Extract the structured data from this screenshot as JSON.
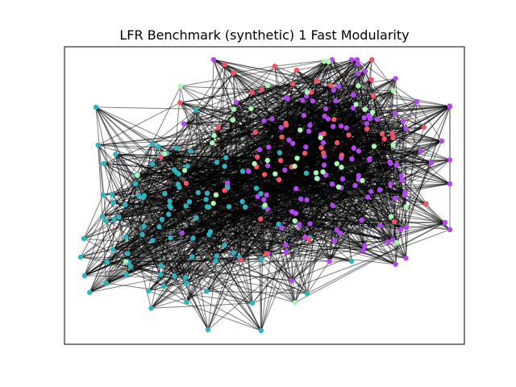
{
  "figure": {
    "title": "LFR Benchmark (synthetic) 1 Fast Modularity"
  },
  "graph": {
    "community_colors": {
      "teal": "#2bb3bf",
      "purple": "#b347ef",
      "red": "#ef5566",
      "light-green": "#a9f7b3"
    },
    "edge_color": "#000000",
    "edge_opacity": 0.5,
    "communities": [
      {
        "id": "teal",
        "node_count": 95
      },
      {
        "id": "purple",
        "node_count": 120
      },
      {
        "id": "red",
        "node_count": 45
      },
      {
        "id": "light-green",
        "node_count": 40
      }
    ]
  }
}
